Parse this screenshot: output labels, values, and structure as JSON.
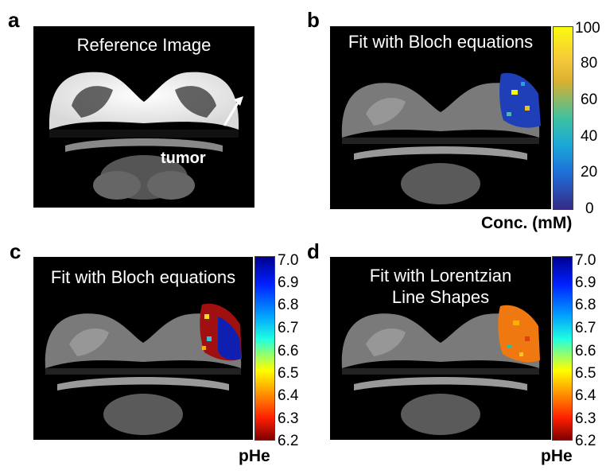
{
  "panels": {
    "a": {
      "label": "a",
      "title": "Reference Image",
      "annotation": "tumor"
    },
    "b": {
      "label": "b",
      "title": "Fit with Bloch equations"
    },
    "c": {
      "label": "c",
      "title": "Fit with Bloch equations"
    },
    "d": {
      "label": "d",
      "title_line1": "Fit with Lorentzian",
      "title_line2": "Line Shapes"
    }
  },
  "colorbars": {
    "conc": {
      "unit": "Conc. (mM)",
      "ticks": [
        "100",
        "80",
        "60",
        "40",
        "20",
        "0"
      ],
      "colormap": "parula"
    },
    "phe_c": {
      "unit": "pHe",
      "ticks": [
        "7.0",
        "6.9",
        "6.8",
        "6.7",
        "6.6",
        "6.5",
        "6.4",
        "6.3",
        "6.2"
      ],
      "colormap": "jet"
    },
    "phe_d": {
      "unit": "pHe",
      "ticks": [
        "7.0",
        "6.9",
        "6.8",
        "6.7",
        "6.6",
        "6.5",
        "6.4",
        "6.3",
        "6.2"
      ],
      "colormap": "jet"
    }
  },
  "colors": {
    "parula_top": "#f9fb0e",
    "parula_bottom": "#352a87",
    "jet_top": "#00008f",
    "jet_bottom": "#800000"
  }
}
